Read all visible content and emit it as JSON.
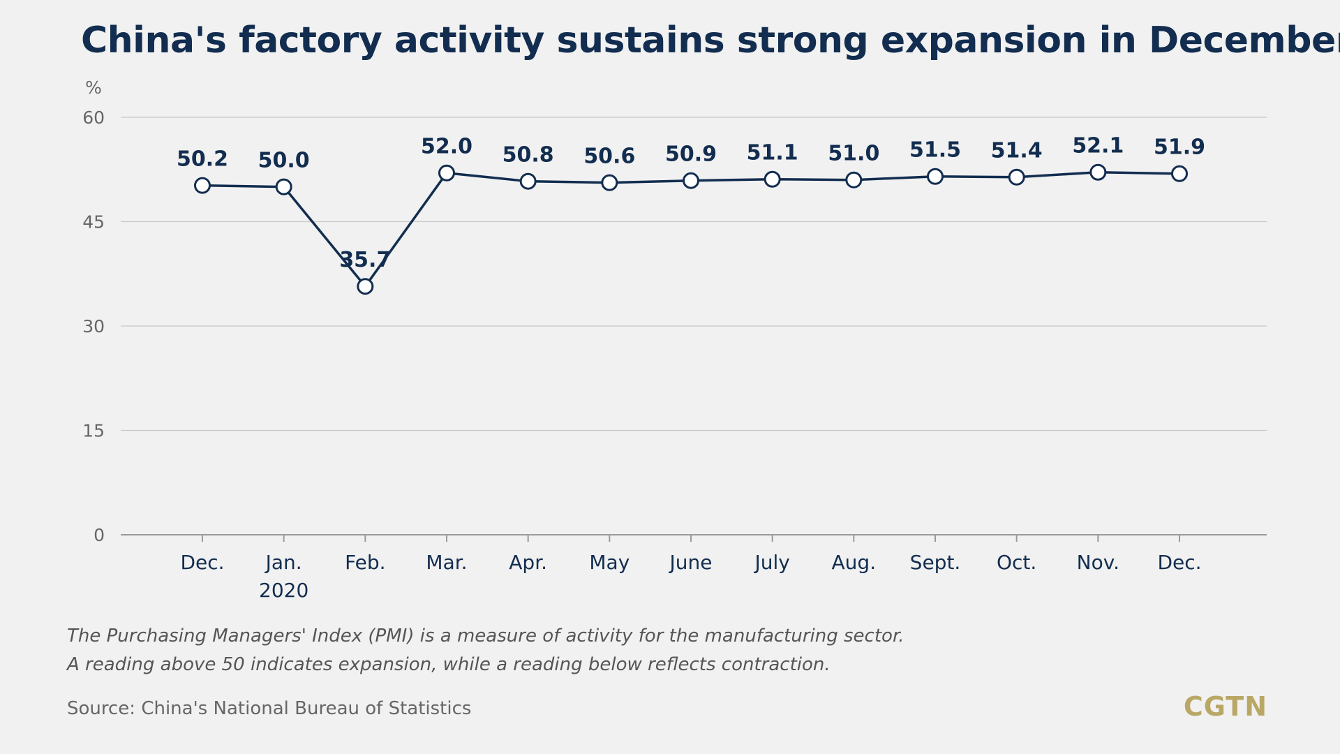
{
  "title": "China's factory activity sustains strong expansion in December",
  "notes": [
    "The Purchasing Managers' Index (PMI) is a measure of activity for the manufacturing sector.",
    "A reading above 50 indicates expansion, while a reading below reflects contraction."
  ],
  "source": "Source: China's National Bureau of Statistics",
  "logo": "CGTN",
  "colors": {
    "line": "#122d4f",
    "marker_fill": "#ffffff",
    "grid": "#c8c8c8",
    "axis": "#9a9a9a",
    "tick_text": "#666666",
    "background": "#f1f1f1",
    "logo": "#b9a766"
  },
  "chart_data": {
    "type": "line",
    "title": "China's factory activity sustains strong expansion in December",
    "ylabel": "%",
    "xlabel": "",
    "ylim": [
      0,
      60
    ],
    "yticks": [
      0,
      15,
      30,
      45,
      60
    ],
    "grid": true,
    "categories": [
      [
        "Dec."
      ],
      [
        "Jan.",
        "2020"
      ],
      [
        "Feb."
      ],
      [
        "Mar."
      ],
      [
        "Apr."
      ],
      [
        "May"
      ],
      [
        "June"
      ],
      [
        "July"
      ],
      [
        "Aug."
      ],
      [
        "Sept."
      ],
      [
        "Oct."
      ],
      [
        "Nov."
      ],
      [
        "Dec."
      ]
    ],
    "series": [
      {
        "values": [
          50.2,
          50.0,
          35.7,
          52.0,
          50.8,
          50.6,
          50.9,
          51.1,
          51.0,
          51.5,
          51.4,
          52.1,
          51.9
        ],
        "labels": [
          "50.2",
          "50.0",
          "35.7",
          "52.0",
          "50.8",
          "50.6",
          "50.9",
          "51.1",
          "51.0",
          "51.5",
          "51.4",
          "52.1",
          "51.9"
        ]
      }
    ]
  }
}
